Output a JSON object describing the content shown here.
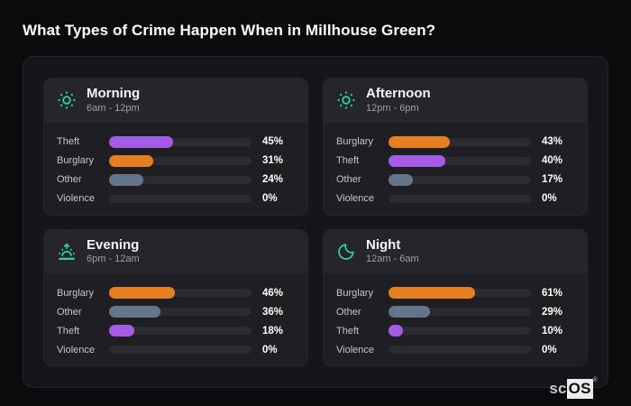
{
  "title": "What Types of Crime Happen When in Millhouse Green?",
  "colors": {
    "theft": "#a45ce6",
    "burglary": "#e67e22",
    "other": "#64748b",
    "violence": "transparent",
    "accent_icon": "#2ed3a3",
    "track": "#2b2b31"
  },
  "cards": [
    {
      "icon": "sun",
      "title": "Morning",
      "subtitle": "6am - 12pm",
      "rows": [
        {
          "label": "Theft",
          "display": "45%",
          "pct": 45,
          "type": "theft"
        },
        {
          "label": "Burglary",
          "display": "31%",
          "pct": 31,
          "type": "burglary"
        },
        {
          "label": "Other",
          "display": "24%",
          "pct": 24,
          "type": "other"
        },
        {
          "label": "Violence",
          "display": "0%",
          "pct": 0,
          "type": "violence"
        }
      ]
    },
    {
      "icon": "sun",
      "title": "Afternoon",
      "subtitle": "12pm - 6pm",
      "rows": [
        {
          "label": "Burglary",
          "display": "43%",
          "pct": 43,
          "type": "burglary"
        },
        {
          "label": "Theft",
          "display": "40%",
          "pct": 40,
          "type": "theft"
        },
        {
          "label": "Other",
          "display": "17%",
          "pct": 17,
          "type": "other"
        },
        {
          "label": "Violence",
          "display": "0%",
          "pct": 0,
          "type": "violence"
        }
      ]
    },
    {
      "icon": "sunrise",
      "title": "Evening",
      "subtitle": "6pm - 12am",
      "rows": [
        {
          "label": "Burglary",
          "display": "46%",
          "pct": 46,
          "type": "burglary"
        },
        {
          "label": "Other",
          "display": "36%",
          "pct": 36,
          "type": "other"
        },
        {
          "label": "Theft",
          "display": "18%",
          "pct": 18,
          "type": "theft"
        },
        {
          "label": "Violence",
          "display": "0%",
          "pct": 0,
          "type": "violence"
        }
      ]
    },
    {
      "icon": "moon",
      "title": "Night",
      "subtitle": "12am - 6am",
      "rows": [
        {
          "label": "Burglary",
          "display": "61%",
          "pct": 61,
          "type": "burglary"
        },
        {
          "label": "Other",
          "display": "29%",
          "pct": 29,
          "type": "other"
        },
        {
          "label": "Theft",
          "display": "10%",
          "pct": 10,
          "type": "theft"
        },
        {
          "label": "Violence",
          "display": "0%",
          "pct": 0,
          "type": "violence"
        }
      ]
    }
  ],
  "logo": {
    "prefix": "sc",
    "suffix": "OS",
    "registered": "®"
  },
  "chart_data": [
    {
      "type": "bar",
      "orientation": "horizontal",
      "title": "Morning",
      "subtitle": "6am - 12pm",
      "categories": [
        "Theft",
        "Burglary",
        "Other",
        "Violence"
      ],
      "values": [
        45,
        31,
        24,
        0
      ],
      "unit": "%",
      "xlim": [
        0,
        100
      ],
      "grid": false,
      "legend": false
    },
    {
      "type": "bar",
      "orientation": "horizontal",
      "title": "Afternoon",
      "subtitle": "12pm - 6pm",
      "categories": [
        "Burglary",
        "Theft",
        "Other",
        "Violence"
      ],
      "values": [
        43,
        40,
        17,
        0
      ],
      "unit": "%",
      "xlim": [
        0,
        100
      ],
      "grid": false,
      "legend": false
    },
    {
      "type": "bar",
      "orientation": "horizontal",
      "title": "Evening",
      "subtitle": "6pm - 12am",
      "categories": [
        "Burglary",
        "Other",
        "Theft",
        "Violence"
      ],
      "values": [
        46,
        36,
        18,
        0
      ],
      "unit": "%",
      "xlim": [
        0,
        100
      ],
      "grid": false,
      "legend": false
    },
    {
      "type": "bar",
      "orientation": "horizontal",
      "title": "Night",
      "subtitle": "12am - 6am",
      "categories": [
        "Burglary",
        "Other",
        "Theft",
        "Violence"
      ],
      "values": [
        61,
        29,
        10,
        0
      ],
      "unit": "%",
      "xlim": [
        0,
        100
      ],
      "grid": false,
      "legend": false
    }
  ]
}
